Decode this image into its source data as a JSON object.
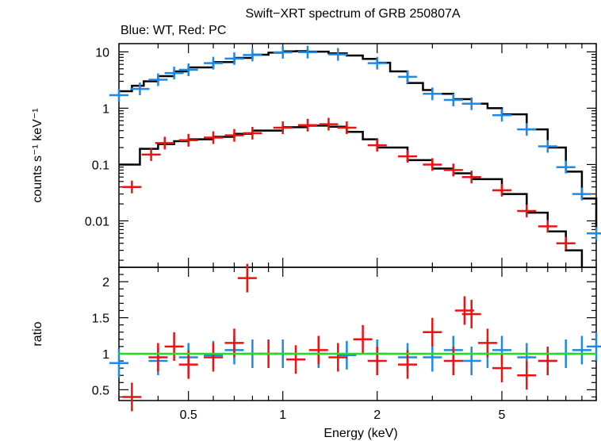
{
  "chart_data": {
    "type": "scatter",
    "title": "Swift−XRT spectrum of GRB 250807A",
    "subtitle": "Blue: WT, Red: PC",
    "xlabel": "Energy (keV)",
    "x_scale": "log",
    "xlim": [
      0.3,
      10
    ],
    "x_ticks": [
      0.5,
      1,
      2,
      5
    ],
    "x_tick_labels": [
      "0.5",
      "1",
      "2",
      "5"
    ],
    "colors": {
      "wt": "#1e8ae6",
      "pc": "#ee1111",
      "model": "#000000",
      "unity": "#22dd22"
    },
    "panels": [
      {
        "id": "spectrum",
        "ylabel": "counts s⁻¹ keV⁻¹",
        "y_scale": "log",
        "ylim": [
          0.0015,
          14
        ],
        "y_ticks": [
          0.01,
          0.1,
          1,
          10
        ],
        "y_tick_labels": [
          "0.01",
          "0.1",
          "1",
          "10"
        ],
        "series": [
          {
            "key": "wt",
            "x": [
              0.3,
              0.35,
              0.4,
              0.45,
              0.5,
              0.6,
              0.7,
              0.8,
              1.0,
              1.2,
              1.5,
              2.0,
              2.5,
              3.0,
              3.5,
              4.0,
              5.0,
              6.0,
              7.0,
              8.0,
              9.0,
              10.0
            ],
            "y": [
              1.7,
              2.2,
              3.2,
              4.2,
              4.8,
              6.3,
              7.6,
              8.8,
              9.8,
              9.9,
              9.0,
              6.3,
              3.6,
              1.8,
              1.4,
              1.2,
              0.75,
              0.42,
              0.21,
              0.09,
              0.03,
              0.006
            ]
          },
          {
            "key": "pc",
            "x": [
              0.33,
              0.38,
              0.42,
              0.5,
              0.6,
              0.7,
              0.8,
              1.0,
              1.2,
              1.4,
              1.6,
              2.0,
              2.5,
              3.0,
              3.5,
              4.0,
              5.0,
              6.0,
              7.0,
              8.0
            ],
            "y": [
              0.04,
              0.15,
              0.24,
              0.27,
              0.3,
              0.33,
              0.36,
              0.45,
              0.5,
              0.52,
              0.45,
              0.22,
              0.14,
              0.1,
              0.08,
              0.06,
              0.035,
              0.015,
              0.008,
              0.004
            ]
          }
        ],
        "model_series": [
          {
            "key": "wt",
            "x": [
              0.3,
              0.33,
              0.36,
              0.4,
              0.45,
              0.5,
              0.6,
              0.7,
              0.8,
              0.9,
              1.0,
              1.1,
              1.2,
              1.4,
              1.6,
              1.8,
              2.0,
              2.2,
              2.5,
              2.8,
              3.0,
              3.5,
              4.0,
              4.5,
              5.0,
              6.0,
              7.0,
              8.0,
              9.0,
              10.0
            ],
            "y": [
              2.0,
              2.5,
              3.0,
              3.7,
              4.5,
              5.3,
              6.6,
              7.8,
              8.9,
              9.7,
              10.2,
              10.3,
              10.1,
              9.4,
              8.6,
              7.5,
              6.4,
              4.5,
              2.8,
              2.1,
              1.8,
              1.45,
              1.2,
              1.0,
              0.78,
              0.42,
              0.2,
              0.075,
              0.025,
              0.007
            ]
          },
          {
            "key": "pc",
            "x": [
              0.3,
              0.35,
              0.4,
              0.45,
              0.5,
              0.6,
              0.7,
              0.8,
              1.0,
              1.2,
              1.4,
              1.6,
              1.8,
              2.0,
              2.5,
              3.0,
              3.5,
              4.0,
              5.0,
              6.0,
              7.0,
              8.0,
              9.0
            ],
            "y": [
              0.1,
              0.19,
              0.23,
              0.26,
              0.28,
              0.31,
              0.35,
              0.4,
              0.46,
              0.49,
              0.47,
              0.38,
              0.28,
              0.2,
              0.12,
              0.085,
              0.07,
              0.055,
              0.03,
              0.014,
              0.0065,
              0.003,
              0.0015
            ]
          }
        ]
      },
      {
        "id": "ratio",
        "ylabel": "ratio",
        "y_scale": "linear",
        "ylim": [
          0.35,
          2.2
        ],
        "y_ticks": [
          0.5,
          1,
          1.5,
          2
        ],
        "y_tick_labels": [
          "0.5",
          "1",
          "1.5",
          "2"
        ],
        "reference_line": 1,
        "series": [
          {
            "key": "wt",
            "x": [
              0.3,
              0.4,
              0.5,
              0.6,
              0.7,
              0.8,
              1.0,
              1.3,
              1.6,
              2.0,
              2.5,
              3.0,
              3.5,
              4.0,
              4.5,
              5.0,
              6.0,
              7.0,
              8.0,
              9.0,
              10.0
            ],
            "y": [
              0.87,
              0.9,
              0.95,
              0.98,
              1.05,
              1.0,
              1.0,
              1.0,
              0.98,
              1.0,
              0.95,
              0.95,
              1.05,
              0.9,
              1.0,
              1.05,
              0.95,
              0.9,
              1.0,
              1.05,
              1.1
            ]
          },
          {
            "key": "pc",
            "x": [
              0.33,
              0.4,
              0.45,
              0.5,
              0.6,
              0.7,
              0.77,
              0.9,
              1.1,
              1.3,
              1.5,
              1.8,
              2.0,
              2.5,
              3.0,
              3.5,
              3.8,
              4.0,
              4.5,
              5.0,
              6.0,
              7.0
            ],
            "y": [
              0.4,
              0.95,
              1.1,
              0.85,
              0.95,
              1.15,
              2.05,
              1.0,
              0.92,
              1.05,
              0.95,
              1.2,
              0.9,
              0.85,
              1.3,
              0.9,
              1.6,
              1.55,
              1.15,
              0.8,
              0.7,
              0.9
            ]
          }
        ]
      }
    ]
  }
}
